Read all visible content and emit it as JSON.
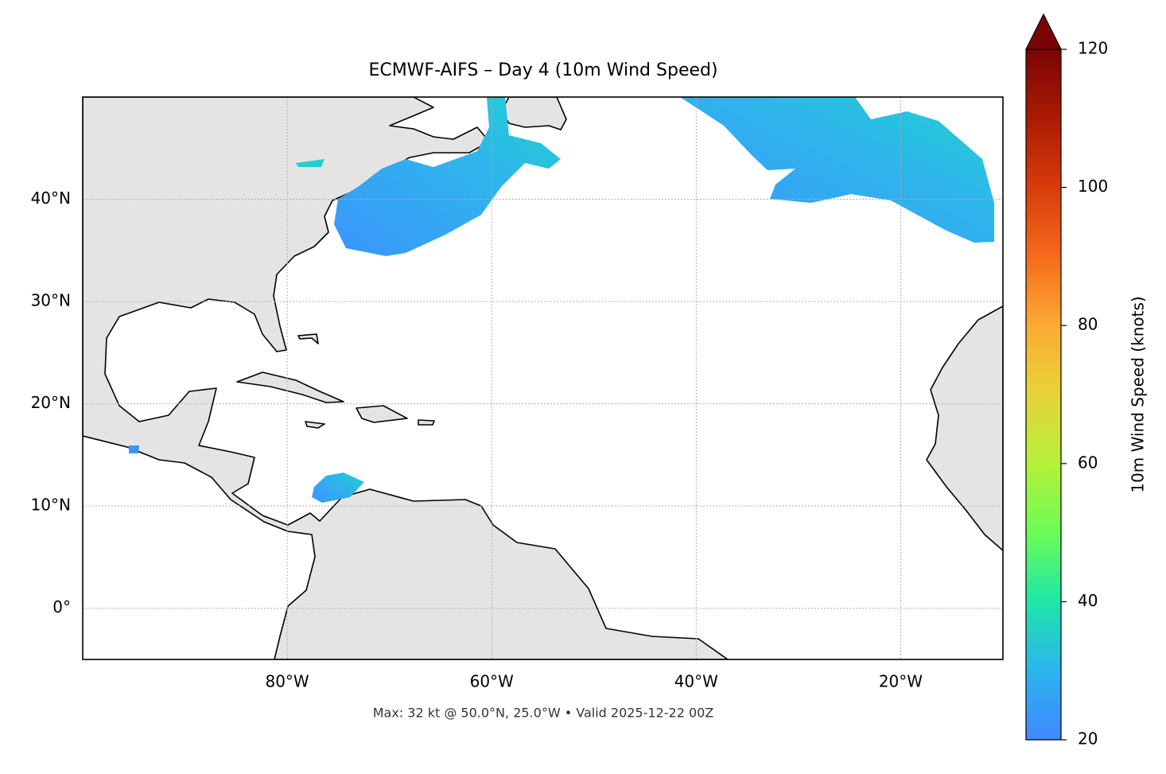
{
  "chart_data": {
    "type": "map",
    "title": "ECMWF-AIFS – Day 4 (10m Wind Speed)",
    "footnote": "Max: 32 kt @ 50.0°N, 25.0°W • Valid 2025-12-22 00Z",
    "xlim": [
      -100,
      -10
    ],
    "ylim": [
      -5,
      50
    ],
    "xticks": [
      {
        "value": -80,
        "label": "80°W"
      },
      {
        "value": -60,
        "label": "60°W"
      },
      {
        "value": -40,
        "label": "40°W"
      },
      {
        "value": -20,
        "label": "20°W"
      }
    ],
    "yticks": [
      {
        "value": 0,
        "label": "0°"
      },
      {
        "value": 10,
        "label": "10°N"
      },
      {
        "value": 20,
        "label": "20°N"
      },
      {
        "value": 30,
        "label": "30°N"
      },
      {
        "value": 40,
        "label": "40°N"
      }
    ],
    "grid": true,
    "colorbar": {
      "label": "10m Wind Speed (knots)",
      "lim": [
        20,
        120
      ],
      "ticks": [
        20,
        40,
        60,
        80,
        100,
        120
      ]
    }
  }
}
